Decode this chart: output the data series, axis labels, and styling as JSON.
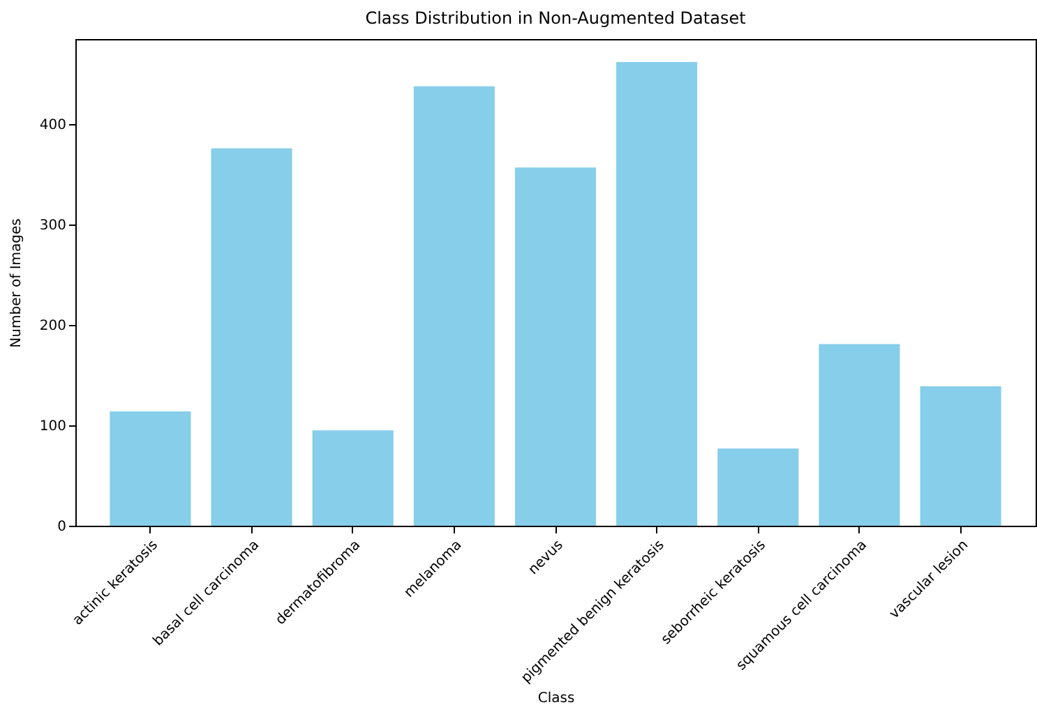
{
  "chart_data": {
    "type": "bar",
    "title": "Class Distribution in Non-Augmented Dataset",
    "xlabel": "Class",
    "ylabel": "Number of Images",
    "categories": [
      "actinic keratosis",
      "basal cell carcinoma",
      "dermatofibroma",
      "melanoma",
      "nevus",
      "pigmented benign keratosis",
      "seborrheic keratosis",
      "squamous cell carcinoma",
      "vascular lesion"
    ],
    "values": [
      114,
      376,
      95,
      438,
      357,
      462,
      77,
      181,
      139
    ],
    "color": "#87ceeb",
    "ylim": [
      0,
      485
    ],
    "yticks": [
      0,
      100,
      200,
      300,
      400
    ],
    "grid": false
  }
}
